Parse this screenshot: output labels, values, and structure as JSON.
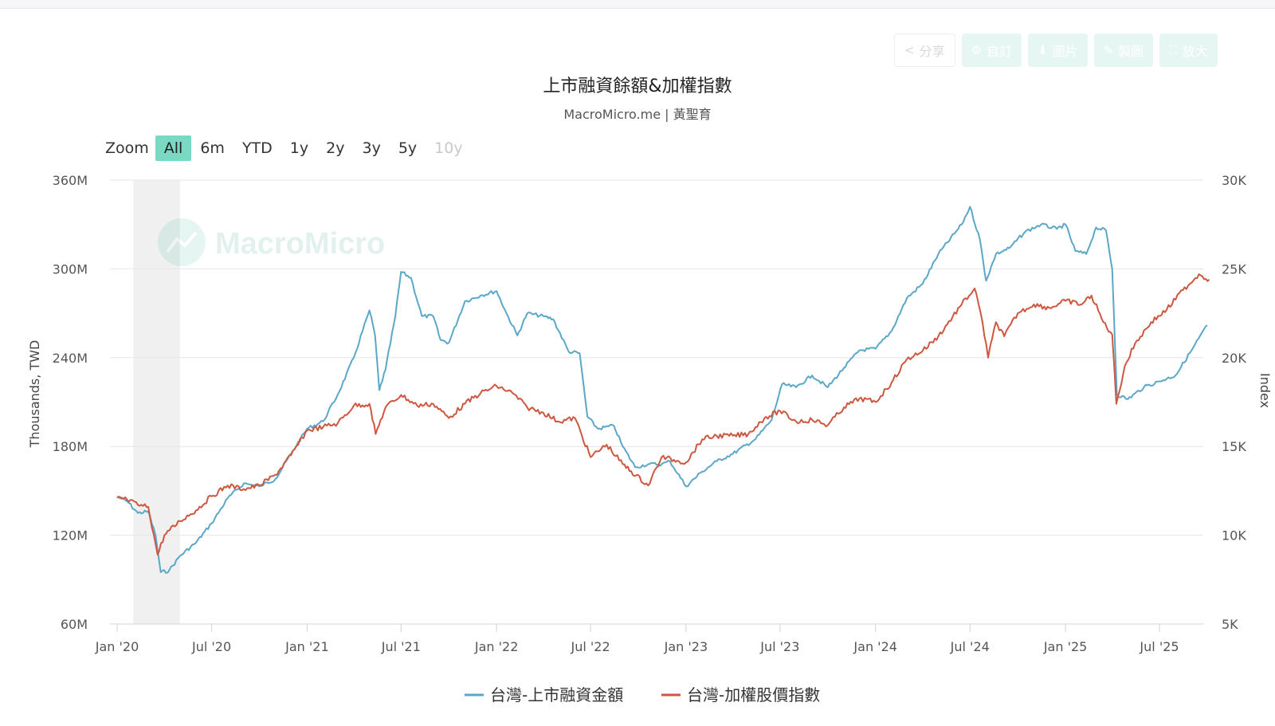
{
  "toolbar": {
    "share": {
      "label": "分享",
      "icon": "share-icon"
    },
    "custom": {
      "label": "自訂",
      "icon": "gear-icon"
    },
    "image": {
      "label": "圖片",
      "icon": "download-icon"
    },
    "draw": {
      "label": "製圖",
      "icon": "pencil-icon"
    },
    "enlarge": {
      "label": "放大",
      "icon": "expand-icon"
    }
  },
  "zoom": {
    "label": "Zoom",
    "buttons": [
      "All",
      "6m",
      "YTD",
      "1y",
      "2y",
      "3y",
      "5y",
      "10y"
    ],
    "active": "All",
    "disabled": [
      "10y"
    ]
  },
  "watermark": "MacroMicro",
  "colors": {
    "margin": "#5ba7c8",
    "index": "#cd5740"
  },
  "chart_data": {
    "type": "line",
    "title": "上市融資餘額&加權指數",
    "subtitle": "MacroMicro.me | 黃聖育",
    "xlabel": "",
    "ylabel_left": "Thousands, TWD",
    "ylabel_right": "Index",
    "xlim": [
      "2020-01-01",
      "2025-10-15"
    ],
    "x_ticks": [
      "Jan '20",
      "Jul '20",
      "Jan '21",
      "Jul '21",
      "Jan '22",
      "Jul '22",
      "Jan '23",
      "Jul '23",
      "Jan '24",
      "Jul '24",
      "Jan '25",
      "Jul '25"
    ],
    "y_left": {
      "ticks": [
        "60M",
        "120M",
        "180M",
        "240M",
        "300M",
        "360M"
      ],
      "min": 60,
      "max": 360,
      "unit": "M"
    },
    "y_right": {
      "ticks": [
        "5K",
        "10K",
        "15K",
        "20K",
        "25K",
        "30K"
      ],
      "min": 5,
      "max": 30,
      "unit": "K"
    },
    "shaded_region": [
      "2020-02-01",
      "2020-05-01"
    ],
    "grid": true,
    "legend": "bottom-center",
    "series": [
      {
        "name": "台灣-上市融資金額",
        "axis": "left",
        "color": "#5ba7c8",
        "points": [
          [
            "2020-01-01",
            146
          ],
          [
            "2020-01-20",
            143
          ],
          [
            "2020-02-10",
            135
          ],
          [
            "2020-03-01",
            136
          ],
          [
            "2020-03-15",
            120
          ],
          [
            "2020-03-25",
            95
          ],
          [
            "2020-04-10",
            96
          ],
          [
            "2020-05-01",
            106
          ],
          [
            "2020-06-01",
            115
          ],
          [
            "2020-07-01",
            128
          ],
          [
            "2020-08-01",
            145
          ],
          [
            "2020-09-01",
            155
          ],
          [
            "2020-10-01",
            153
          ],
          [
            "2020-11-01",
            158
          ],
          [
            "2020-12-01",
            175
          ],
          [
            "2021-01-01",
            192
          ],
          [
            "2021-02-01",
            197
          ],
          [
            "2021-03-01",
            215
          ],
          [
            "2021-04-01",
            240
          ],
          [
            "2021-05-01",
            272
          ],
          [
            "2021-05-12",
            255
          ],
          [
            "2021-05-20",
            218
          ],
          [
            "2021-06-01",
            232
          ],
          [
            "2021-06-20",
            268
          ],
          [
            "2021-07-01",
            298
          ],
          [
            "2021-07-20",
            294
          ],
          [
            "2021-08-10",
            268
          ],
          [
            "2021-09-01",
            268
          ],
          [
            "2021-09-15",
            252
          ],
          [
            "2021-10-01",
            250
          ],
          [
            "2021-11-01",
            278
          ],
          [
            "2021-12-01",
            282
          ],
          [
            "2022-01-01",
            285
          ],
          [
            "2022-01-20",
            270
          ],
          [
            "2022-02-10",
            255
          ],
          [
            "2022-03-01",
            270
          ],
          [
            "2022-04-01",
            268
          ],
          [
            "2022-04-20",
            266
          ],
          [
            "2022-05-20",
            244
          ],
          [
            "2022-06-10",
            243
          ],
          [
            "2022-06-25",
            200
          ],
          [
            "2022-07-15",
            192
          ],
          [
            "2022-08-15",
            194
          ],
          [
            "2022-09-01",
            180
          ],
          [
            "2022-09-25",
            166
          ],
          [
            "2022-10-20",
            168
          ],
          [
            "2022-11-15",
            168
          ],
          [
            "2022-12-01",
            170
          ],
          [
            "2023-01-01",
            153
          ],
          [
            "2023-02-01",
            163
          ],
          [
            "2023-03-01",
            170
          ],
          [
            "2023-04-01",
            175
          ],
          [
            "2023-05-15",
            185
          ],
          [
            "2023-06-15",
            198
          ],
          [
            "2023-07-05",
            222
          ],
          [
            "2023-08-01",
            220
          ],
          [
            "2023-09-01",
            228
          ],
          [
            "2023-10-01",
            220
          ],
          [
            "2023-11-01",
            233
          ],
          [
            "2023-12-01",
            245
          ],
          [
            "2024-01-01",
            246
          ],
          [
            "2024-02-01",
            258
          ],
          [
            "2024-03-01",
            280
          ],
          [
            "2024-04-01",
            290
          ],
          [
            "2024-05-01",
            310
          ],
          [
            "2024-06-15",
            330
          ],
          [
            "2024-07-01",
            342
          ],
          [
            "2024-07-20",
            320
          ],
          [
            "2024-08-01",
            292
          ],
          [
            "2024-08-20",
            310
          ],
          [
            "2024-09-15",
            314
          ],
          [
            "2024-10-15",
            325
          ],
          [
            "2024-11-15",
            330
          ],
          [
            "2024-12-15",
            327
          ],
          [
            "2025-01-01",
            330
          ],
          [
            "2025-01-20",
            312
          ],
          [
            "2025-02-10",
            310
          ],
          [
            "2025-03-01",
            328
          ],
          [
            "2025-03-20",
            326
          ],
          [
            "2025-04-01",
            300
          ],
          [
            "2025-04-10",
            215
          ],
          [
            "2025-05-01",
            212
          ],
          [
            "2025-06-01",
            220
          ],
          [
            "2025-07-01",
            224
          ],
          [
            "2025-08-01",
            228
          ],
          [
            "2025-09-01",
            245
          ],
          [
            "2025-10-01",
            262
          ]
        ]
      },
      {
        "name": "台灣-加權股價指數",
        "axis": "right",
        "color": "#cd5740",
        "points": [
          [
            "2020-01-01",
            12.1
          ],
          [
            "2020-01-20",
            12.0
          ],
          [
            "2020-02-10",
            11.7
          ],
          [
            "2020-03-01",
            11.6
          ],
          [
            "2020-03-19",
            8.9
          ],
          [
            "2020-04-01",
            10.0
          ],
          [
            "2020-05-01",
            10.8
          ],
          [
            "2020-06-01",
            11.4
          ],
          [
            "2020-07-01",
            12.2
          ],
          [
            "2020-08-01",
            12.8
          ],
          [
            "2020-09-01",
            12.6
          ],
          [
            "2020-10-01",
            12.8
          ],
          [
            "2020-11-01",
            13.4
          ],
          [
            "2020-12-01",
            14.5
          ],
          [
            "2021-01-01",
            15.9
          ],
          [
            "2021-02-01",
            16.1
          ],
          [
            "2021-03-01",
            16.3
          ],
          [
            "2021-04-01",
            17.3
          ],
          [
            "2021-05-01",
            17.4
          ],
          [
            "2021-05-13",
            15.7
          ],
          [
            "2021-06-01",
            17.2
          ],
          [
            "2021-07-01",
            17.9
          ],
          [
            "2021-08-01",
            17.3
          ],
          [
            "2021-09-01",
            17.4
          ],
          [
            "2021-10-01",
            16.6
          ],
          [
            "2021-11-01",
            17.4
          ],
          [
            "2021-12-01",
            18.0
          ],
          [
            "2022-01-01",
            18.4
          ],
          [
            "2022-02-01",
            18.0
          ],
          [
            "2022-03-01",
            17.2
          ],
          [
            "2022-04-01",
            16.9
          ],
          [
            "2022-05-01",
            16.4
          ],
          [
            "2022-06-01",
            16.6
          ],
          [
            "2022-07-01",
            14.4
          ],
          [
            "2022-08-01",
            15.1
          ],
          [
            "2022-09-01",
            14.0
          ],
          [
            "2022-10-20",
            12.8
          ],
          [
            "2022-11-15",
            14.4
          ],
          [
            "2022-12-15",
            14.2
          ],
          [
            "2023-01-01",
            14.1
          ],
          [
            "2023-02-01",
            15.4
          ],
          [
            "2023-03-01",
            15.6
          ],
          [
            "2023-04-01",
            15.6
          ],
          [
            "2023-05-01",
            15.7
          ],
          [
            "2023-06-01",
            16.6
          ],
          [
            "2023-07-01",
            17.0
          ],
          [
            "2023-08-01",
            16.4
          ],
          [
            "2023-09-01",
            16.5
          ],
          [
            "2023-10-01",
            16.2
          ],
          [
            "2023-11-01",
            17.2
          ],
          [
            "2023-12-01",
            17.7
          ],
          [
            "2024-01-01",
            17.5
          ],
          [
            "2024-02-01",
            18.6
          ],
          [
            "2024-03-01",
            19.9
          ],
          [
            "2024-04-01",
            20.4
          ],
          [
            "2024-05-01",
            21.2
          ],
          [
            "2024-06-15",
            23.0
          ],
          [
            "2024-07-10",
            23.9
          ],
          [
            "2024-07-25",
            22.0
          ],
          [
            "2024-08-05",
            20.0
          ],
          [
            "2024-08-20",
            22.0
          ],
          [
            "2024-09-05",
            21.2
          ],
          [
            "2024-10-01",
            22.5
          ],
          [
            "2024-11-01",
            23.0
          ],
          [
            "2024-12-01",
            22.8
          ],
          [
            "2025-01-01",
            23.2
          ],
          [
            "2025-02-01",
            23.0
          ],
          [
            "2025-02-20",
            23.5
          ],
          [
            "2025-03-15",
            22.0
          ],
          [
            "2025-04-01",
            21.3
          ],
          [
            "2025-04-09",
            17.4
          ],
          [
            "2025-04-25",
            19.5
          ],
          [
            "2025-05-15",
            20.8
          ],
          [
            "2025-06-15",
            22.0
          ],
          [
            "2025-07-15",
            22.7
          ],
          [
            "2025-08-15",
            23.8
          ],
          [
            "2025-09-15",
            24.7
          ],
          [
            "2025-10-05",
            24.4
          ]
        ]
      }
    ]
  }
}
